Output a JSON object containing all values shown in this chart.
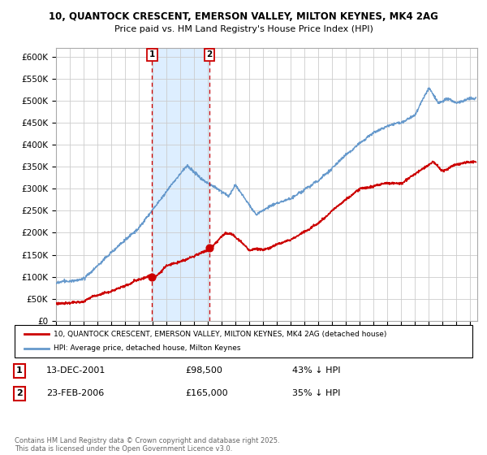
{
  "title_line1": "10, QUANTOCK CRESCENT, EMERSON VALLEY, MILTON KEYNES, MK4 2AG",
  "title_line2": "Price paid vs. HM Land Registry's House Price Index (HPI)",
  "ylim": [
    0,
    620000
  ],
  "yticks": [
    0,
    50000,
    100000,
    150000,
    200000,
    250000,
    300000,
    350000,
    400000,
    450000,
    500000,
    550000,
    600000
  ],
  "ytick_labels": [
    "£0",
    "£50K",
    "£100K",
    "£150K",
    "£200K",
    "£250K",
    "£300K",
    "£350K",
    "£400K",
    "£450K",
    "£500K",
    "£550K",
    "£600K"
  ],
  "xlim_start": 1995.0,
  "xlim_end": 2025.5,
  "transaction1_x": 2001.958,
  "transaction1_y": 98500,
  "transaction2_x": 2006.12,
  "transaction2_y": 165000,
  "legend_line1": "10, QUANTOCK CRESCENT, EMERSON VALLEY, MILTON KEYNES, MK4 2AG (detached house)",
  "legend_line2": "HPI: Average price, detached house, Milton Keynes",
  "annot1_date": "13-DEC-2001",
  "annot1_price": "£98,500",
  "annot1_hpi": "43% ↓ HPI",
  "annot2_date": "23-FEB-2006",
  "annot2_price": "£165,000",
  "annot2_hpi": "35% ↓ HPI",
  "footer": "Contains HM Land Registry data © Crown copyright and database right 2025.\nThis data is licensed under the Open Government Licence v3.0.",
  "red_color": "#cc0000",
  "blue_color": "#6699cc",
  "shaded_color": "#ddeeff",
  "background_color": "#ffffff",
  "grid_color": "#cccccc"
}
